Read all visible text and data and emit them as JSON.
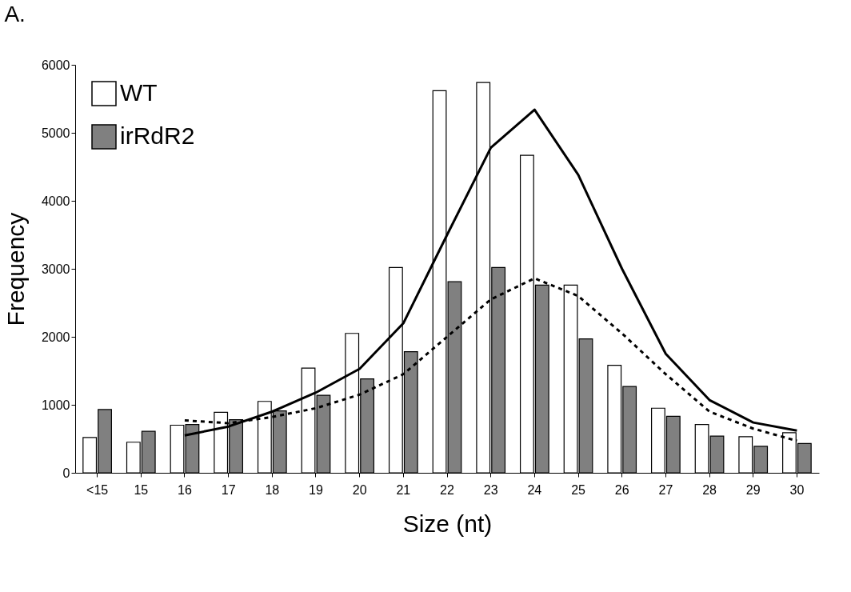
{
  "chart_data": {
    "type": "bar",
    "title": "A.",
    "xlabel": "Size (nt)",
    "ylabel": "Frequency",
    "categories": [
      "<15",
      "15",
      "16",
      "17",
      "18",
      "19",
      "20",
      "21",
      "22",
      "23",
      "24",
      "25",
      "26",
      "27",
      "28",
      "29",
      "30"
    ],
    "series": [
      {
        "name": "WT",
        "color": "#ffffff",
        "values": [
          520,
          450,
          700,
          890,
          1050,
          1540,
          2050,
          3020,
          5620,
          5740,
          4670,
          2760,
          1580,
          950,
          710,
          530,
          590
        ]
      },
      {
        "name": "irRdR2",
        "color": "#808080",
        "values": [
          930,
          610,
          710,
          780,
          910,
          1140,
          1380,
          1780,
          2810,
          3020,
          2760,
          1970,
          1270,
          830,
          540,
          390,
          430
        ]
      },
      {
        "type": "line",
        "color": "#000000",
        "line_style": "solid",
        "values": [
          null,
          null,
          550,
          680,
          900,
          1180,
          1530,
          2200,
          3500,
          4780,
          5340,
          4380,
          3000,
          1750,
          1070,
          740,
          620
        ]
      },
      {
        "type": "line",
        "color": "#000000",
        "line_style": "dashed",
        "values": [
          null,
          null,
          770,
          730,
          820,
          950,
          1150,
          1450,
          2000,
          2550,
          2860,
          2600,
          2050,
          1450,
          900,
          650,
          470
        ]
      }
    ],
    "ylim": [
      0,
      6000
    ],
    "yticks": [
      0,
      1000,
      2000,
      3000,
      4000,
      5000,
      6000
    ],
    "grid": false,
    "legend": "top left"
  }
}
